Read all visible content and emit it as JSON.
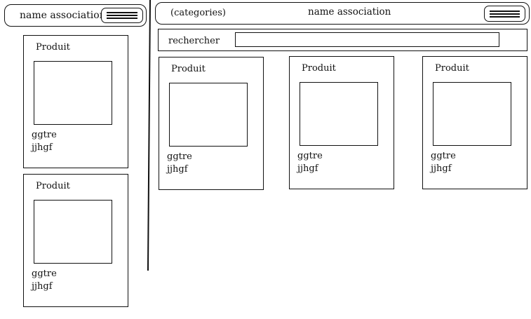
{
  "mobile": {
    "header": {
      "title": "name association",
      "menu_icon": "hamburger-menu-icon"
    },
    "products": [
      {
        "name": "Produit",
        "line1": "ggtre",
        "line2": "jjhgf"
      },
      {
        "name": "Produit",
        "line1": "ggtre",
        "line2": "jjhgf"
      }
    ]
  },
  "desktop": {
    "header": {
      "categories": "(categories)",
      "title": "name association",
      "menu_icon": "hamburger-menu-icon"
    },
    "search": {
      "label": "rechercher",
      "value": "",
      "placeholder": ""
    },
    "products": [
      {
        "name": "Produit",
        "line1": "ggtre",
        "line2": "jjhgf"
      },
      {
        "name": "Produit",
        "line1": "ggtre",
        "line2": "jjhgf"
      },
      {
        "name": "Produit",
        "line1": "ggtre",
        "line2": "jjhgf"
      }
    ]
  }
}
